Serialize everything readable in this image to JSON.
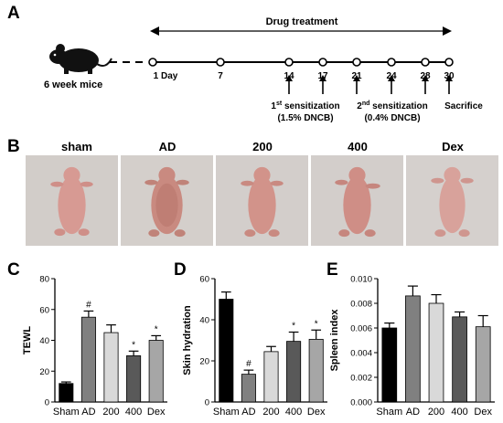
{
  "panels": {
    "a": "A",
    "b": "B",
    "c": "C",
    "d": "D",
    "e": "E"
  },
  "timeline": {
    "drug_treatment": "Drug treatment",
    "mouse_label": "6 week mice",
    "days": [
      "1 Day",
      "7",
      "14",
      "17",
      "21",
      "24",
      "28",
      "30"
    ],
    "sens1_prefix": "1",
    "sens1_sup": "st",
    "sens1_text": " sensitization",
    "sens1_dose": "(1.5% DNCB)",
    "sens2_prefix": "2",
    "sens2_sup": "nd",
    "sens2_text": " sensitization",
    "sens2_dose": "(0.4% DNCB)",
    "sacrifice": "Sacrifice"
  },
  "photos": {
    "labels": [
      "sham",
      "AD",
      "200",
      "400",
      "Dex"
    ]
  },
  "colors": {
    "bars": [
      "#000000",
      "#808080",
      "#d9d9d9",
      "#595959",
      "#a6a6a6"
    ]
  },
  "chart_data": [
    {
      "type": "bar",
      "categories": [
        "Sham",
        "AD",
        "200",
        "400",
        "Dex"
      ],
      "values": [
        12,
        55,
        45,
        30,
        40
      ],
      "errors": [
        1,
        4,
        5,
        3,
        3
      ],
      "annotations": [
        "",
        "#",
        "",
        "*",
        "*"
      ],
      "ylabel": "TEWL",
      "ylim": [
        0,
        80
      ],
      "yticks": [
        "0",
        "20",
        "40",
        "60",
        "80"
      ]
    },
    {
      "type": "bar",
      "categories": [
        "Sham",
        "AD",
        "200",
        "400",
        "Dex"
      ],
      "values": [
        50,
        13.5,
        24.5,
        29.5,
        30.5
      ],
      "errors": [
        3.5,
        2,
        2.5,
        4.5,
        4.5
      ],
      "annotations": [
        "",
        "#",
        "",
        "*",
        "*"
      ],
      "ylabel": "Skin hydration",
      "ylim": [
        0,
        60
      ],
      "yticks": [
        "0",
        "20",
        "40",
        "60"
      ]
    },
    {
      "type": "bar",
      "categories": [
        "Sham",
        "AD",
        "200",
        "400",
        "Dex"
      ],
      "values": [
        0.006,
        0.0086,
        0.008,
        0.0069,
        0.0061
      ],
      "errors": [
        0.0004,
        0.0008,
        0.0007,
        0.0004,
        0.0009
      ],
      "annotations": [
        "",
        "",
        "",
        "",
        ""
      ],
      "ylabel": "Spleen index",
      "ylim": [
        0,
        0.01
      ],
      "yticks": [
        "0.000",
        "0.002",
        "0.004",
        "0.006",
        "0.008",
        "0.010"
      ]
    }
  ]
}
